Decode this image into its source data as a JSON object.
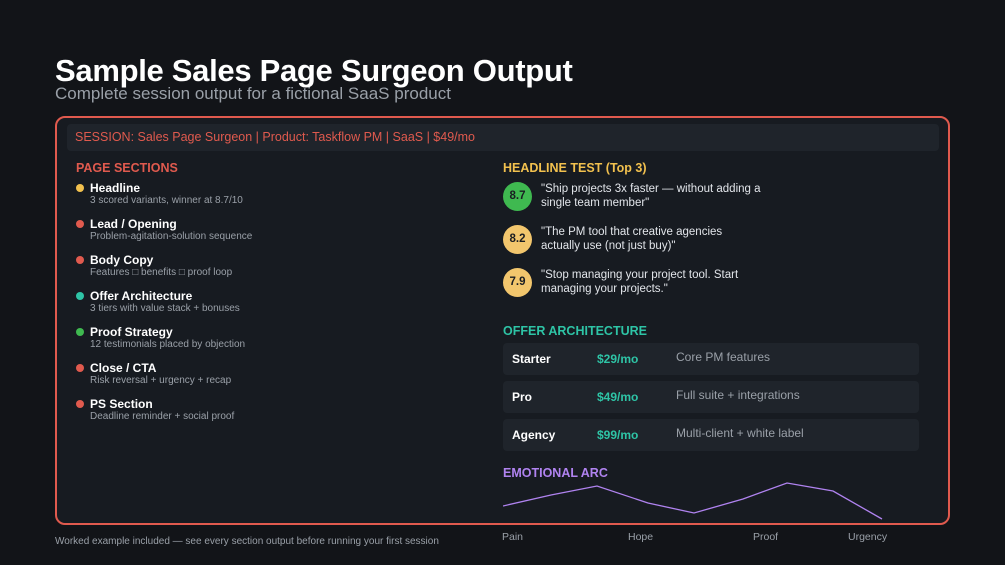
{
  "header": {
    "title": "Sample Sales Page Surgeon Output",
    "subtitle": "Complete session output for a fictional SaaS product"
  },
  "session_bar": "SESSION:  Sales Page Surgeon  |  Product: Taskflow PM  |  SaaS  |  $49/mo",
  "page_sections": {
    "title": "PAGE SECTIONS",
    "items": [
      {
        "name": "Headline",
        "desc": "3 scored variants, winner at 8.7/10",
        "color": "#f2c14e"
      },
      {
        "name": "Lead / Opening",
        "desc": "Problem-agitation-solution sequence",
        "color": "#e05a4e"
      },
      {
        "name": "Body Copy",
        "desc": "Features □ benefits □ proof loop",
        "color": "#e05a4e"
      },
      {
        "name": "Offer Architecture",
        "desc": "3 tiers with value stack + bonuses",
        "color": "#2ec4a6"
      },
      {
        "name": "Proof Strategy",
        "desc": "12 testimonials placed by objection",
        "color": "#3fb950"
      },
      {
        "name": "Close / CTA",
        "desc": "Risk reversal + urgency + recap",
        "color": "#e05a4e"
      },
      {
        "name": "PS Section",
        "desc": "Deadline reminder + social proof",
        "color": "#e05a4e"
      }
    ]
  },
  "headline_test": {
    "title": "HEADLINE TEST (Top 3)",
    "items": [
      {
        "score": "8.7",
        "text": "\"Ship projects 3x faster — without adding a single team member\"",
        "color": "#3fb950"
      },
      {
        "score": "8.2",
        "text": "\"The PM tool that creative agencies actually use (not just buy)\"",
        "color": "#f2c66d"
      },
      {
        "score": "7.9",
        "text": "\"Stop managing your project tool. Start managing your projects.\"",
        "color": "#f2c66d"
      }
    ]
  },
  "offer_architecture": {
    "title": "OFFER ARCHITECTURE",
    "tiers": [
      {
        "tier": "Starter",
        "price": "$29/mo",
        "feature": "Core PM features"
      },
      {
        "tier": "Pro",
        "price": "$49/mo",
        "feature": "Full suite + integrations"
      },
      {
        "tier": "Agency",
        "price": "$99/mo",
        "feature": "Multi-client + white label"
      }
    ]
  },
  "emotional_arc": {
    "title": "EMOTIONAL ARC",
    "labels": [
      "Pain",
      "Hope",
      "Proof",
      "Urgency"
    ],
    "line_color": "#b083f0"
  },
  "footer": "Worked example included — see every section output before running your first session",
  "colors": {
    "accent_red": "#e05a4e",
    "accent_yellow": "#f2c14e",
    "accent_teal": "#2ec4a6",
    "accent_purple": "#b083f0"
  }
}
